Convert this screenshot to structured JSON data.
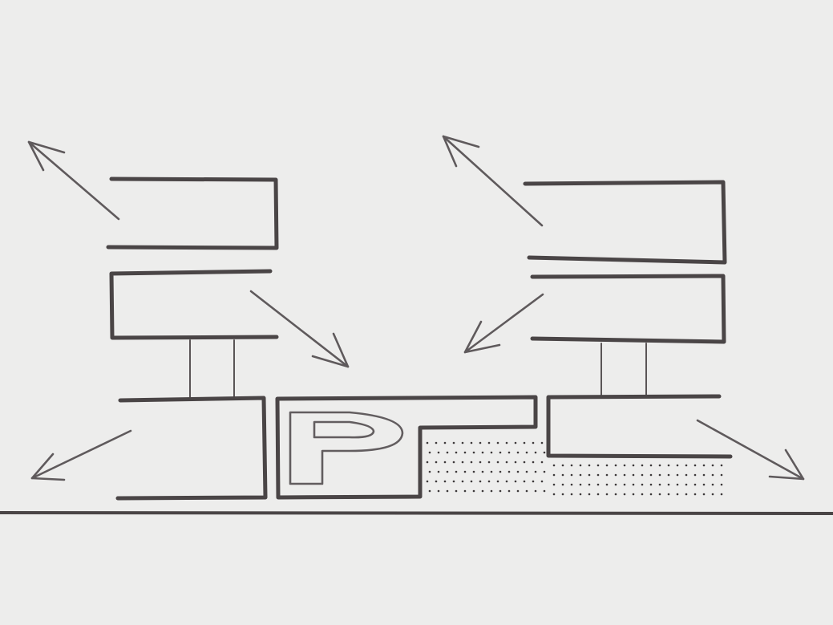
{
  "diagram": {
    "parking_sign": "P",
    "colors": {
      "paper": "#ededec",
      "ink": "#4a4546",
      "arrow_ink": "#5f5a5c",
      "dots": "#3c3839"
    },
    "elements": [
      "left-building",
      "right-building",
      "parking-structure",
      "dotted-ground-area",
      "ground-line",
      "airflow-arrows"
    ]
  }
}
